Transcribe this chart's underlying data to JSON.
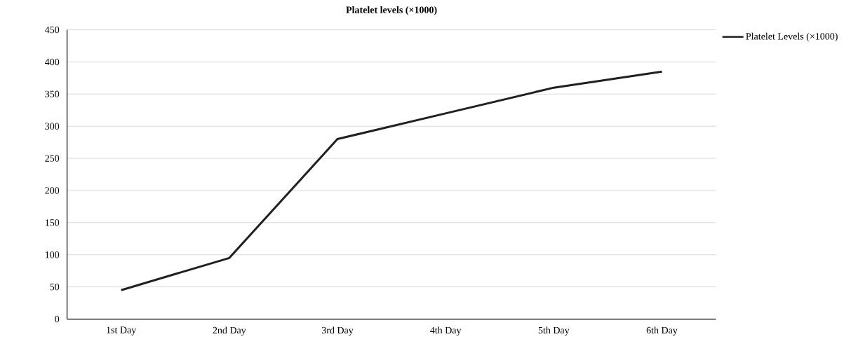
{
  "chart_data": {
    "type": "line",
    "title": "Platelet levels (×1000)",
    "categories": [
      "1st Day",
      "2nd Day",
      "3rd Day",
      "4th Day",
      "5th Day",
      "6th Day"
    ],
    "series": [
      {
        "name": "Platelet Levels (×1000)",
        "color": "#231f20",
        "values": [
          45,
          95,
          280,
          320,
          360,
          385
        ]
      }
    ],
    "ylim": [
      0,
      450
    ],
    "yticks": [
      0,
      50,
      100,
      150,
      200,
      250,
      300,
      350,
      400,
      450
    ],
    "grid": "y",
    "legend": "top right",
    "marker": "none",
    "line_style": "solid"
  }
}
